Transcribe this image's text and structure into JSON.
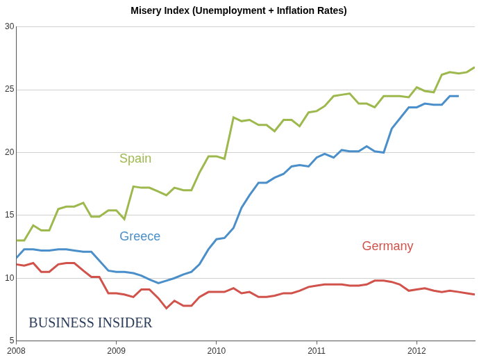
{
  "chart_data": {
    "type": "line",
    "title": "Misery Index (Unemployment + Inflation Rates)",
    "watermark": "BUSINESS INSIDER",
    "x": [
      2008,
      2008.08,
      2008.17,
      2008.25,
      2008.33,
      2008.42,
      2008.5,
      2008.58,
      2008.67,
      2008.75,
      2008.83,
      2008.92,
      2009,
      2009.08,
      2009.17,
      2009.25,
      2009.33,
      2009.42,
      2009.5,
      2009.58,
      2009.67,
      2009.75,
      2009.83,
      2009.92,
      2010,
      2010.08,
      2010.17,
      2010.25,
      2010.33,
      2010.42,
      2010.5,
      2010.58,
      2010.67,
      2010.75,
      2010.83,
      2010.92,
      2011,
      2011.08,
      2011.17,
      2011.25,
      2011.33,
      2011.42,
      2011.5,
      2011.58,
      2011.67,
      2011.75,
      2011.83,
      2011.92,
      2012,
      2012.08,
      2012.17,
      2012.25,
      2012.33,
      2012.42,
      2012.5,
      2012.58
    ],
    "series": [
      {
        "name": "Spain",
        "color": "#9db84c",
        "values": [
          13.0,
          13.0,
          14.2,
          13.8,
          13.8,
          15.5,
          15.7,
          15.7,
          16.0,
          14.9,
          14.9,
          15.4,
          15.4,
          14.7,
          17.3,
          17.2,
          17.2,
          16.9,
          16.6,
          17.2,
          17.0,
          17.0,
          18.4,
          19.7,
          19.7,
          19.5,
          22.8,
          22.5,
          22.6,
          22.2,
          22.2,
          21.7,
          22.6,
          22.6,
          22.1,
          23.2,
          23.3,
          23.7,
          24.5,
          24.6,
          24.7,
          23.9,
          23.9,
          23.6,
          24.5,
          24.5,
          24.5,
          24.4,
          25.2,
          24.9,
          24.8,
          26.2,
          26.4,
          26.3,
          26.4,
          26.8
        ]
      },
      {
        "name": "Greece",
        "color": "#4a8fc9",
        "values": [
          11.6,
          12.3,
          12.3,
          12.2,
          12.2,
          12.3,
          12.3,
          12.2,
          12.1,
          12.1,
          11.4,
          10.6,
          10.5,
          10.5,
          10.4,
          10.2,
          9.9,
          9.6,
          9.8,
          10.0,
          10.3,
          10.5,
          11.1,
          12.3,
          13.1,
          13.2,
          14.0,
          15.6,
          16.6,
          17.6,
          17.6,
          18.0,
          18.3,
          18.9,
          19.0,
          18.9,
          19.6,
          19.9,
          19.6,
          20.2,
          20.1,
          20.1,
          20.5,
          20.1,
          20.0,
          21.9,
          22.7,
          23.6,
          23.6,
          23.9,
          23.8,
          23.8,
          24.5,
          24.5,
          null,
          null
        ]
      },
      {
        "name": "Germany",
        "color": "#d0524b",
        "values": [
          11.1,
          11.0,
          11.2,
          10.5,
          10.5,
          11.1,
          11.2,
          11.2,
          10.6,
          10.1,
          10.1,
          8.8,
          8.8,
          8.7,
          8.5,
          9.1,
          9.1,
          8.4,
          7.6,
          8.2,
          7.8,
          7.8,
          8.5,
          8.9,
          8.9,
          8.9,
          9.2,
          8.8,
          8.9,
          8.5,
          8.5,
          8.6,
          8.8,
          8.8,
          9.0,
          9.3,
          9.4,
          9.5,
          9.5,
          9.5,
          9.4,
          9.4,
          9.5,
          9.8,
          9.8,
          9.7,
          9.5,
          9.0,
          9.1,
          9.2,
          9.0,
          8.9,
          9.0,
          8.9,
          8.8,
          8.7
        ]
      }
    ],
    "xlim": [
      2008,
      2012.58
    ],
    "xticks": [
      2008,
      2009,
      2010,
      2011,
      2012
    ],
    "ylim": [
      5,
      30
    ],
    "yticks": [
      5,
      10,
      15,
      20,
      25,
      30
    ],
    "grid": true
  }
}
